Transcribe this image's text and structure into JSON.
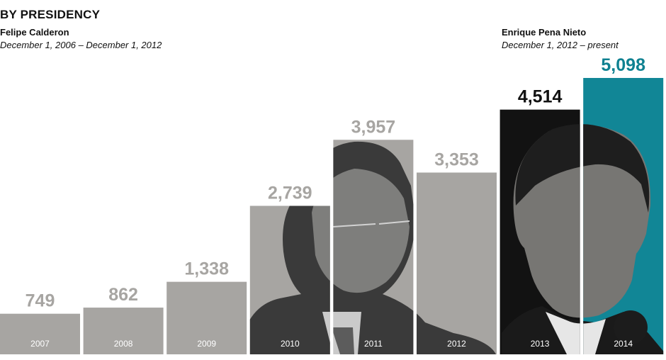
{
  "header": {
    "title": "BY PRESIDENCY",
    "presidents": [
      {
        "name": "Felipe Calderon",
        "term": "December 1, 2006 – December 1, 2012"
      },
      {
        "name": "Enrique Pena Nieto",
        "term": "December 1, 2012 – present"
      }
    ]
  },
  "chart_data": {
    "type": "bar",
    "title": "BY PRESIDENCY",
    "categories": [
      "2007",
      "2008",
      "2009",
      "2010",
      "2011",
      "2012",
      "2013",
      "2014"
    ],
    "values": [
      749,
      862,
      1338,
      2739,
      3957,
      3353,
      4514,
      5098
    ],
    "value_labels": [
      "749",
      "862",
      "1,338",
      "2,739",
      "3,957",
      "3,353",
      "4,514",
      "5,098"
    ],
    "ylim": [
      0,
      5098
    ],
    "grid": false,
    "colors": {
      "calderon_bar": "#a7a5a2",
      "calderon_label": "#a7a5a2",
      "pena_nieto_2013_bar": "#121212",
      "pena_nieto_2013_label": "#111111",
      "pena_nieto_2014_bar": "#118696",
      "pena_nieto_2014_label": "#0f8191"
    }
  }
}
